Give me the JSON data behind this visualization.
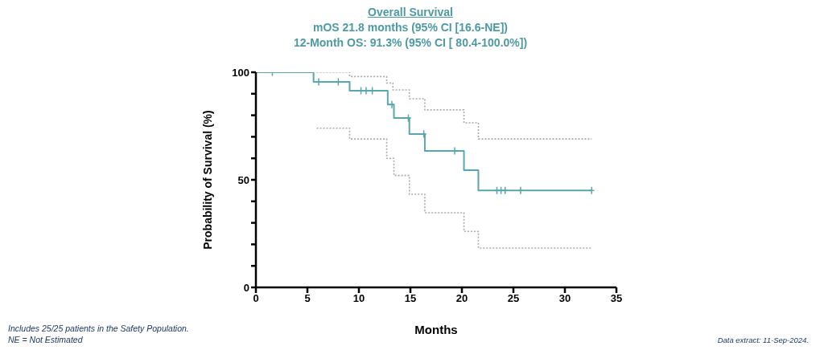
{
  "chart_data": {
    "type": "step",
    "title": "Overall Survival",
    "subtitle": "mOS 21.8 months (95% CI [16.6-NE])\n12-Month OS: 91.3% (95% CI [ 80.4-100.0%])",
    "xlabel": "Months",
    "ylabel": "Probability of Survival (%)",
    "xlim": [
      0,
      35
    ],
    "xticks": [
      0,
      5,
      10,
      15,
      20,
      25,
      30,
      35
    ],
    "ylim": [
      0,
      100
    ],
    "yticks": [
      0,
      {
        "value": 10,
        "label": null
      },
      {
        "value": 20,
        "label": null
      },
      {
        "value": 30,
        "label": null
      },
      {
        "value": 40,
        "label": null
      },
      50,
      {
        "value": 60,
        "label": null
      },
      {
        "value": 70,
        "label": null
      },
      {
        "value": 80,
        "label": null
      },
      {
        "value": 90,
        "label": null
      },
      100
    ],
    "series": [
      {
        "color": "#aaaaaa",
        "line_style": "dotted",
        "x": [
          5.9,
          9.1,
          12.7,
          13.3,
          14.9,
          16.4,
          20.2,
          21.6,
          32.6
        ],
        "values": [
          100,
          98,
          95,
          91.8,
          87.7,
          82.5,
          76.5,
          69,
          69
        ]
      },
      {
        "color": "#aaaaaa",
        "line_style": "dotted",
        "x": [
          5.9,
          9.1,
          12.7,
          13.4,
          14.9,
          16.4,
          20.2,
          21.6,
          32.6
        ],
        "values": [
          74,
          69,
          60,
          52,
          43.3,
          34.7,
          26,
          18.3,
          18.3
        ]
      },
      {
        "color": "#5aa6ad",
        "line_style": "solid",
        "x": [
          0,
          5.6,
          9.1,
          12.8,
          13.4,
          14.9,
          16.4,
          20.2,
          21.6,
          32.6
        ],
        "values": [
          100,
          95.5,
          91.4,
          85,
          78.7,
          71.3,
          63.4,
          54.5,
          45.1,
          45.1
        ]
      },
      {
        "type": "scatter",
        "color": "#5aa6ad",
        "marker": "cross",
        "x": [
          1.6,
          6.1,
          8.0,
          10.2,
          10.7,
          11.3,
          13.2,
          14.8,
          16.3,
          19.3,
          23.4,
          23.8,
          24.2,
          25.7,
          32.6
        ],
        "values": [
          100,
          95.5,
          95.5,
          91.4,
          91.4,
          91.4,
          85,
          78.7,
          71.3,
          63.4,
          45.1,
          45.1,
          45.1,
          45.1,
          45.1
        ]
      }
    ],
    "annotations": [
      "Includes 25/25 patients in the Safety Population.",
      "NE = Not Estimated",
      "Data extract: 11-Sep-2024."
    ]
  }
}
